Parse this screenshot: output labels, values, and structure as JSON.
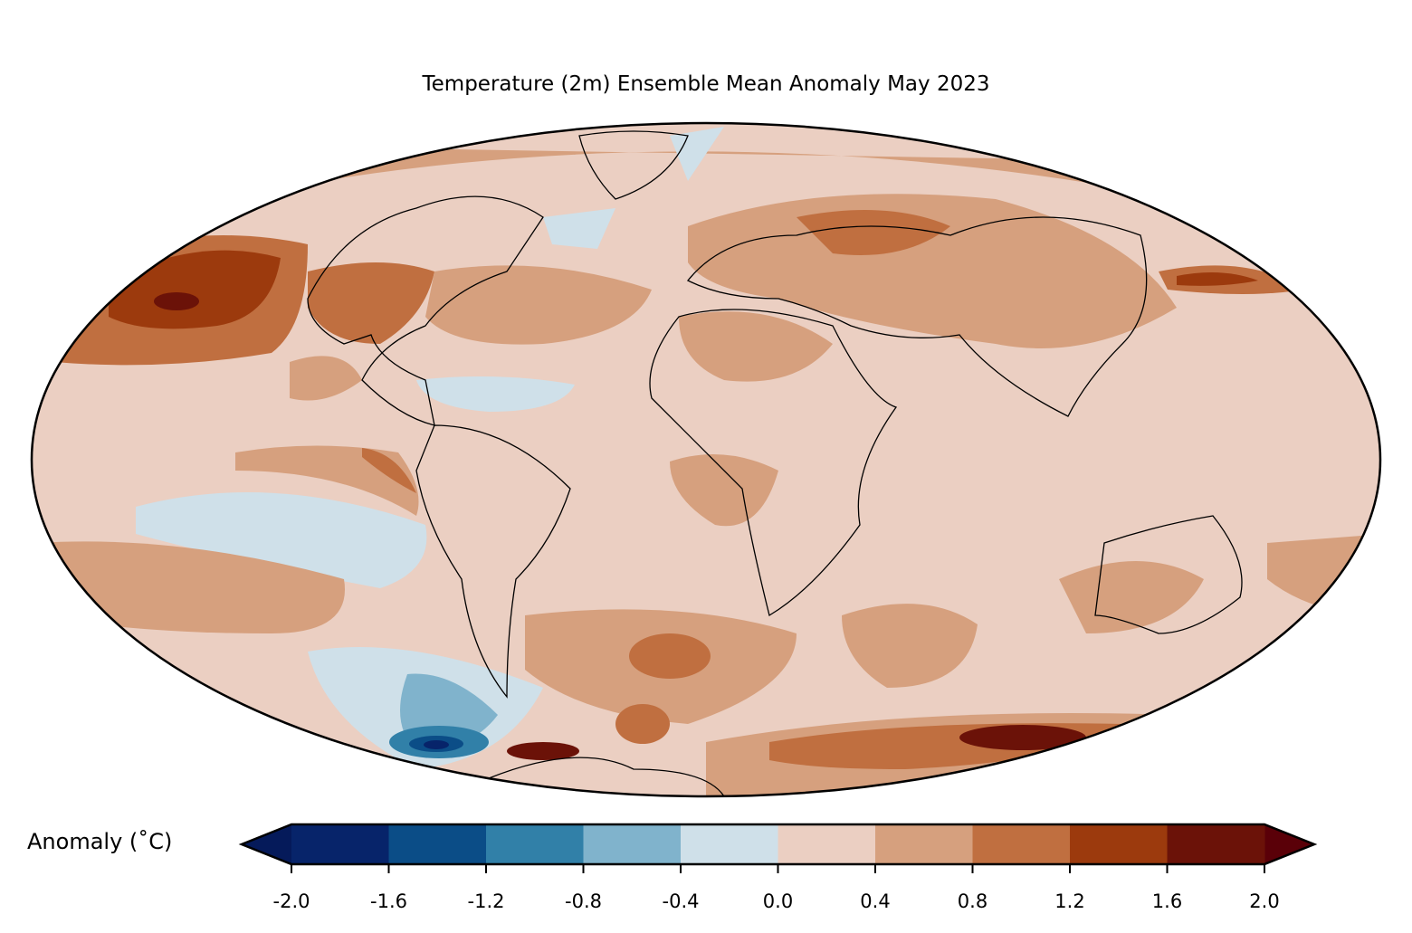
{
  "title": "Temperature (2m) Ensemble Mean Anomaly May 2023",
  "colorbar": {
    "label": "Anomaly (˚C)",
    "ticks": [
      "-2.0",
      "-1.6",
      "-1.2",
      "-0.8",
      "-0.4",
      "0.0",
      "0.4",
      "0.8",
      "1.2",
      "1.6",
      "2.0"
    ],
    "levels": [
      -2.0,
      -1.6,
      -1.2,
      -0.8,
      -0.4,
      0.0,
      0.4,
      0.8,
      1.2,
      1.6,
      2.0
    ],
    "colors": [
      "#07246a",
      "#0b4d87",
      "#3180a8",
      "#80b3cc",
      "#cfe0e9",
      "#ebcfc2",
      "#d6a07e",
      "#c06f40",
      "#9c3a0d",
      "#6b1208"
    ],
    "under_color": "#051a5a",
    "over_color": "#5a0008",
    "extend": "both"
  },
  "map": {
    "projection": "Mollweide",
    "base_color": "#ebcfc2"
  }
}
